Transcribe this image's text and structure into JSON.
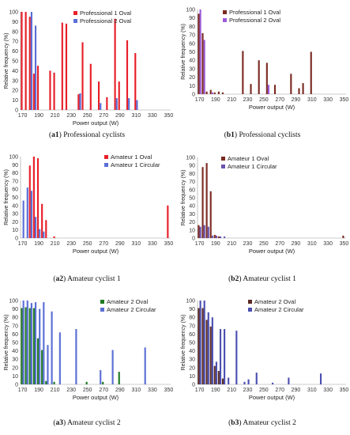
{
  "captions": [
    {
      "tag": "a1",
      "text": "Professional cyclists"
    },
    {
      "tag": "b1",
      "text": "Professional cyclists"
    },
    {
      "tag": "a2",
      "text": "Amateur cyclist 1"
    },
    {
      "tag": "b2",
      "text": "Amateur cyclist 1"
    },
    {
      "tag": "a3",
      "text": "Amateur cyclist 2"
    },
    {
      "tag": "b3",
      "text": "Amateur cyclist 2"
    }
  ],
  "chart_data": [
    {
      "type": "bar",
      "xlabel": "Power output (W)",
      "ylabel": "Relative frequency (%)",
      "ylim": [
        0,
        100
      ],
      "yticks": [
        0,
        10,
        20,
        30,
        40,
        50,
        60,
        70,
        80,
        90,
        100
      ],
      "categories": [
        "170",
        "190",
        "210",
        "230",
        "250",
        "270",
        "290",
        "310",
        "330",
        "350"
      ],
      "x": [
        170,
        175,
        180,
        185,
        190,
        195,
        200,
        205,
        210,
        215,
        220,
        225,
        230,
        235,
        240,
        245,
        250,
        255,
        260,
        265,
        270,
        275,
        280,
        285,
        290,
        295,
        300,
        305,
        310,
        315,
        320,
        325,
        330,
        335,
        340,
        345,
        350
      ],
      "legend_position": "top",
      "series": [
        {
          "name": "Professional 1 Oval",
          "color": "#e8202a",
          "values": [
            100,
            100,
            95,
            37,
            45,
            0,
            0,
            40,
            38,
            0,
            89,
            88,
            0,
            0,
            16,
            69,
            0,
            47,
            0,
            29,
            0,
            13,
            0,
            93,
            29,
            0,
            71,
            0,
            58,
            0,
            0,
            0,
            0,
            0,
            0,
            0,
            0
          ]
        },
        {
          "name": "Professional 2 Oval",
          "color": "#5b6fd6",
          "values": [
            0,
            0,
            100,
            86,
            0,
            0,
            0,
            0,
            0,
            0,
            0,
            0,
            0,
            0,
            17,
            0,
            0,
            0,
            0,
            7,
            0,
            0,
            0,
            12,
            0,
            0,
            12,
            0,
            10,
            0,
            0,
            0,
            0,
            0,
            0,
            0,
            0
          ]
        }
      ]
    },
    {
      "type": "bar",
      "xlabel": "Power output (W)",
      "ylabel": "Relative frequency (%)",
      "ylim": [
        0,
        100
      ],
      "yticks": [
        0,
        10,
        20,
        30,
        40,
        50,
        60,
        70,
        80,
        90,
        100
      ],
      "categories": [
        "170",
        "190",
        "210",
        "230",
        "250",
        "270",
        "290",
        "310",
        "330",
        "350"
      ],
      "x": [
        170,
        175,
        180,
        185,
        190,
        195,
        200,
        205,
        210,
        215,
        220,
        225,
        230,
        235,
        240,
        245,
        250,
        255,
        260,
        265,
        270,
        275,
        280,
        285,
        290,
        295,
        300,
        305,
        310,
        315,
        320,
        325,
        330,
        335,
        340,
        345,
        350
      ],
      "legend_position": "top",
      "series": [
        {
          "name": "Professional 1 Oval",
          "color": "#7b2a22",
          "values": [
            95,
            72,
            3,
            5,
            2,
            3,
            2,
            0,
            0,
            0,
            0,
            51,
            0,
            12,
            0,
            40,
            0,
            37,
            0,
            11,
            0,
            0,
            0,
            24,
            0,
            7,
            13,
            0,
            50,
            0,
            0,
            0,
            0,
            0,
            0,
            0,
            0
          ]
        },
        {
          "name": "Professional 2 Oval",
          "color": "#9b5ad6",
          "values": [
            100,
            64,
            0,
            2,
            0,
            0,
            0,
            0,
            0,
            0,
            0,
            0,
            0,
            0,
            0,
            0,
            0,
            11,
            0,
            0,
            0,
            0,
            0,
            0,
            0,
            0,
            0,
            0,
            0,
            0,
            0,
            0,
            0,
            0,
            0,
            0,
            0
          ]
        }
      ]
    },
    {
      "type": "bar",
      "xlabel": "Power output (W)",
      "ylabel": "Relative frequency (%)",
      "ylim": [
        0,
        100
      ],
      "yticks": [
        0,
        10,
        20,
        30,
        40,
        50,
        60,
        70,
        80,
        90,
        100
      ],
      "categories": [
        "170",
        "190",
        "210",
        "230",
        "250",
        "270",
        "290",
        "310",
        "330",
        "350"
      ],
      "x": [
        170,
        175,
        180,
        185,
        190,
        195,
        200,
        205,
        210,
        215,
        220,
        225,
        230,
        235,
        240,
        245,
        250,
        255,
        260,
        265,
        270,
        275,
        280,
        285,
        290,
        295,
        300,
        305,
        310,
        315,
        320,
        325,
        330,
        335,
        340,
        345,
        350
      ],
      "legend_position": "top",
      "series": [
        {
          "name": "Amateur 1 Oval",
          "color": "#e8202a",
          "values": [
            0,
            0,
            89,
            100,
            98,
            42,
            22,
            0,
            2,
            0,
            0,
            0,
            0,
            0,
            0,
            0,
            0,
            0,
            0,
            0,
            0,
            0,
            0,
            0,
            0,
            0,
            0,
            0,
            0,
            0,
            0,
            0,
            0,
            0,
            0,
            0,
            40
          ]
        },
        {
          "name": "Amateur 1 Circular",
          "color": "#5b6fd6",
          "values": [
            46,
            62,
            58,
            26,
            11,
            8,
            0,
            0,
            0,
            0,
            0,
            0,
            0,
            0,
            0,
            0,
            0,
            0,
            0,
            0,
            0,
            0,
            0,
            0,
            0,
            0,
            0,
            0,
            0,
            0,
            0,
            0,
            0,
            0,
            0,
            0,
            0
          ]
        }
      ]
    },
    {
      "type": "bar",
      "xlabel": "Power output (W)",
      "ylabel": "Relative frequency (%)",
      "ylim": [
        0,
        100
      ],
      "yticks": [
        0,
        10,
        20,
        30,
        40,
        50,
        60,
        70,
        80,
        90,
        100
      ],
      "categories": [
        "170",
        "190",
        "210",
        "230",
        "250",
        "270",
        "290",
        "310",
        "330",
        "350"
      ],
      "x": [
        170,
        175,
        180,
        185,
        190,
        195,
        200,
        205,
        210,
        215,
        220,
        225,
        230,
        235,
        240,
        245,
        250,
        255,
        260,
        265,
        270,
        275,
        280,
        285,
        290,
        295,
        300,
        305,
        310,
        315,
        320,
        325,
        330,
        335,
        340,
        345,
        350
      ],
      "legend_position": "top",
      "series": [
        {
          "name": "Amateur 1 Oval",
          "color": "#7b2a22",
          "values": [
            16,
            88,
            93,
            58,
            4,
            2,
            0,
            0,
            0,
            0,
            0,
            0,
            0,
            0,
            0,
            0,
            0,
            0,
            0,
            0,
            0,
            0,
            0,
            0,
            0,
            0,
            0,
            0,
            0,
            0,
            0,
            0,
            0,
            0,
            0,
            0,
            3
          ]
        },
        {
          "name": "Amateur 1 Circular",
          "color": "#6a54b0",
          "values": [
            14,
            16,
            14,
            3,
            3,
            2,
            2,
            0,
            0,
            0,
            0,
            0,
            0,
            0,
            0,
            0,
            0,
            0,
            0,
            0,
            0,
            0,
            0,
            0,
            0,
            0,
            0,
            0,
            0,
            0,
            0,
            0,
            0,
            0,
            0,
            0,
            0
          ]
        }
      ]
    },
    {
      "type": "bar",
      "xlabel": "Power output (W)",
      "ylabel": "Relative frequency (%)",
      "ylim": [
        0,
        100
      ],
      "yticks": [
        0,
        10,
        20,
        30,
        40,
        50,
        60,
        70,
        80,
        90,
        100
      ],
      "categories": [
        "170",
        "190",
        "210",
        "230",
        "250",
        "270",
        "290",
        "310",
        "330",
        "350"
      ],
      "x": [
        170,
        175,
        180,
        185,
        190,
        195,
        200,
        205,
        210,
        215,
        220,
        225,
        230,
        235,
        240,
        245,
        250,
        255,
        260,
        265,
        270,
        275,
        280,
        285,
        290,
        295,
        300,
        305,
        310,
        315,
        320,
        325,
        330,
        335,
        340,
        345,
        350
      ],
      "legend_position": "top",
      "series": [
        {
          "name": "Amateur 2 Oval",
          "color": "#1e7a22",
          "values": [
            91,
            92,
            91,
            91,
            55,
            41,
            4,
            0,
            3,
            0,
            0,
            0,
            0,
            0,
            0,
            0,
            3,
            0,
            0,
            0,
            3,
            0,
            0,
            0,
            15,
            0,
            0,
            0,
            0,
            0,
            0,
            0,
            0,
            0,
            0,
            0,
            0
          ]
        },
        {
          "name": "Amateur 2 Circular",
          "color": "#5b6fd6",
          "values": [
            100,
            100,
            97,
            98,
            90,
            98,
            47,
            87,
            0,
            62,
            0,
            0,
            0,
            66,
            0,
            0,
            0,
            0,
            0,
            17,
            0,
            0,
            41,
            0,
            0,
            0,
            0,
            0,
            0,
            0,
            44,
            0,
            0,
            0,
            0,
            0,
            0
          ]
        }
      ]
    },
    {
      "type": "bar",
      "xlabel": "Power output (W)",
      "ylabel": "Relative frequency (%)",
      "ylim": [
        0,
        100
      ],
      "yticks": [
        0,
        10,
        20,
        30,
        40,
        50,
        60,
        70,
        80,
        90,
        100
      ],
      "categories": [
        "170",
        "190",
        "210",
        "230",
        "250",
        "270",
        "290",
        "310",
        "330",
        "350"
      ],
      "x": [
        170,
        175,
        180,
        185,
        190,
        195,
        200,
        205,
        210,
        215,
        220,
        225,
        230,
        235,
        240,
        245,
        250,
        255,
        260,
        265,
        270,
        275,
        280,
        285,
        290,
        295,
        300,
        305,
        310,
        315,
        320,
        325,
        330,
        335,
        340,
        345,
        350
      ],
      "legend_position": "top",
      "series": [
        {
          "name": "Amateur 2 Oval",
          "color": "#5a2a24",
          "values": [
            91,
            91,
            77,
            69,
            22,
            16,
            7,
            0,
            0,
            0,
            0,
            0,
            0,
            0,
            0,
            0,
            0,
            0,
            0,
            0,
            0,
            0,
            0,
            0,
            0,
            0,
            0,
            0,
            0,
            0,
            0,
            0,
            0,
            0,
            0,
            0,
            0
          ]
        },
        {
          "name": "Amateur 2 Circular",
          "color": "#4b4fb0",
          "values": [
            100,
            100,
            86,
            80,
            27,
            66,
            66,
            8,
            0,
            64,
            0,
            3,
            6,
            0,
            14,
            0,
            0,
            0,
            2,
            0,
            0,
            0,
            8,
            0,
            0,
            0,
            0,
            0,
            0,
            0,
            13,
            0,
            0,
            0,
            0,
            0,
            0
          ]
        }
      ]
    }
  ]
}
